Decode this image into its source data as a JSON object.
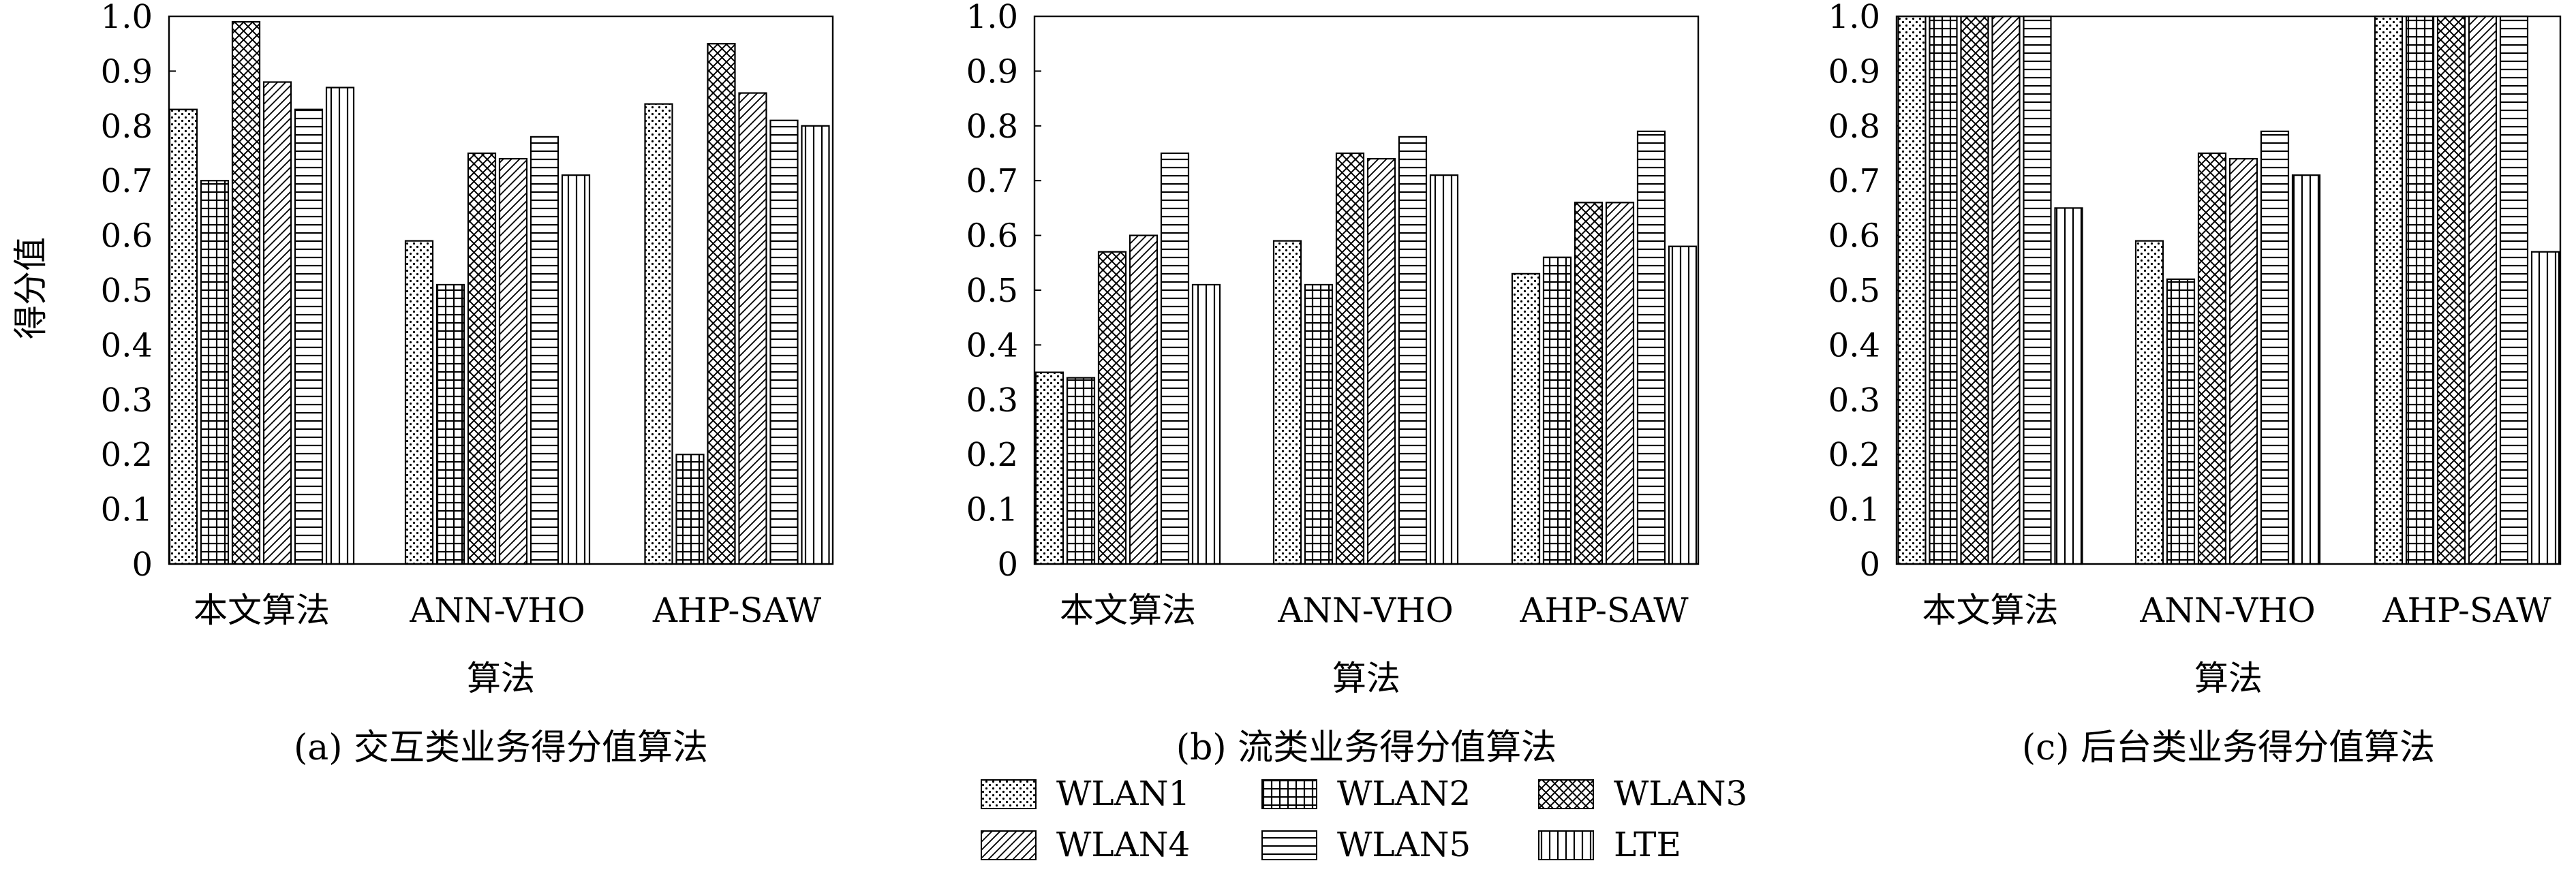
{
  "y_axis_label": "得分值",
  "x_axis_label": "算法",
  "y_ticks": [
    "0",
    "0.1",
    "0.2",
    "0.3",
    "0.4",
    "0.5",
    "0.6",
    "0.7",
    "0.8",
    "0.9",
    "1.0"
  ],
  "legend": [
    "WLAN1",
    "WLAN2",
    "WLAN3",
    "WLAN4",
    "WLAN5",
    "LTE"
  ],
  "chart_data": [
    {
      "type": "bar",
      "caption": "(a) 交互类业务得分值算法",
      "xlabel": "算法",
      "ylabel": "得分值",
      "ylim": [
        0,
        1.0
      ],
      "categories": [
        "本文算法",
        "ANN-VHO",
        "AHP-SAW"
      ],
      "series": [
        {
          "name": "WLAN1",
          "values": [
            0.83,
            0.59,
            0.84
          ]
        },
        {
          "name": "WLAN2",
          "values": [
            0.7,
            0.51,
            0.2
          ]
        },
        {
          "name": "WLAN3",
          "values": [
            0.99,
            0.75,
            0.95
          ]
        },
        {
          "name": "WLAN4",
          "values": [
            0.88,
            0.74,
            0.86
          ]
        },
        {
          "name": "WLAN5",
          "values": [
            0.83,
            0.78,
            0.81
          ]
        },
        {
          "name": "LTE",
          "values": [
            0.87,
            0.71,
            0.8
          ]
        }
      ]
    },
    {
      "type": "bar",
      "caption": "(b) 流类业务得分值算法",
      "xlabel": "算法",
      "ylabel": "",
      "ylim": [
        0,
        1.0
      ],
      "categories": [
        "本文算法",
        "ANN-VHO",
        "AHP-SAW"
      ],
      "series": [
        {
          "name": "WLAN1",
          "values": [
            0.35,
            0.59,
            0.53
          ]
        },
        {
          "name": "WLAN2",
          "values": [
            0.34,
            0.51,
            0.56
          ]
        },
        {
          "name": "WLAN3",
          "values": [
            0.57,
            0.75,
            0.66
          ]
        },
        {
          "name": "WLAN4",
          "values": [
            0.6,
            0.74,
            0.66
          ]
        },
        {
          "name": "WLAN5",
          "values": [
            0.75,
            0.78,
            0.79
          ]
        },
        {
          "name": "LTE",
          "values": [
            0.51,
            0.71,
            0.58
          ]
        }
      ]
    },
    {
      "type": "bar",
      "caption": "(c) 后台类业务得分值算法",
      "xlabel": "算法",
      "ylabel": "",
      "ylim": [
        0,
        1.0
      ],
      "categories": [
        "本文算法",
        "ANN-VHO",
        "AHP-SAW"
      ],
      "series": [
        {
          "name": "WLAN1",
          "values": [
            1.0,
            0.59,
            1.0
          ]
        },
        {
          "name": "WLAN2",
          "values": [
            1.0,
            0.52,
            1.0
          ]
        },
        {
          "name": "WLAN3",
          "values": [
            1.0,
            0.75,
            1.0
          ]
        },
        {
          "name": "WLAN4",
          "values": [
            1.0,
            0.74,
            1.0
          ]
        },
        {
          "name": "WLAN5",
          "values": [
            1.0,
            0.79,
            1.0
          ]
        },
        {
          "name": "LTE",
          "values": [
            0.65,
            0.71,
            0.57
          ]
        }
      ]
    }
  ]
}
